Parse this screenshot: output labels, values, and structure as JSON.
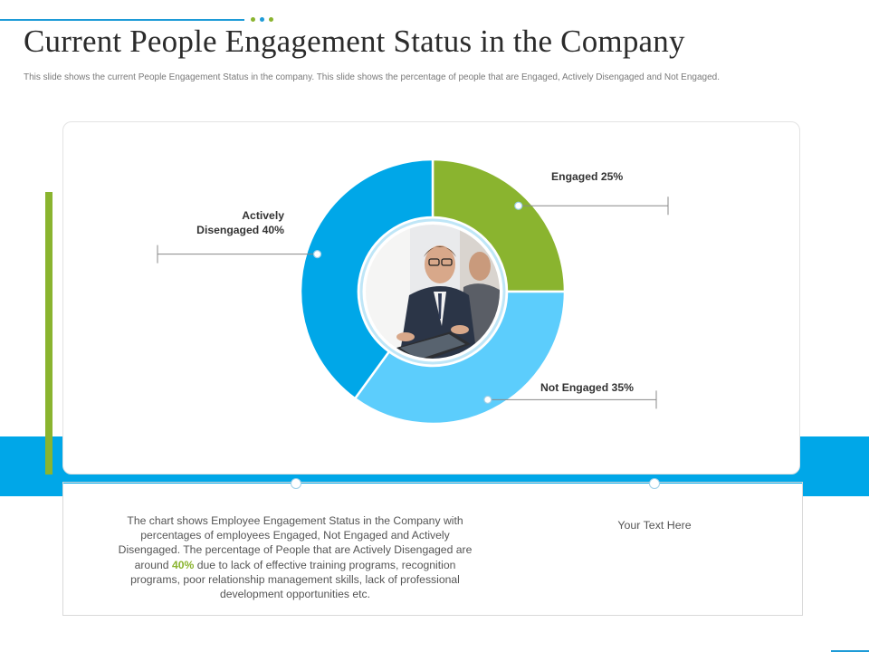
{
  "header": {
    "title": "Current People Engagement Status in the Company",
    "subtitle": "This slide shows the current People Engagement  Status in the company. This slide shows the percentage of people that are Engaged,  Actively Disengaged and Not Engaged."
  },
  "colors": {
    "engaged": "#8ab42f",
    "not_engaged": "#5ccdfc",
    "actively_disengaged": "#00a7e8",
    "accent_blue": "#00a7e8",
    "accent_green": "#8ab42f"
  },
  "chart_data": {
    "type": "pie",
    "title": "",
    "categories": [
      "Engaged",
      "Not Engaged",
      "Actively Disengaged"
    ],
    "values": [
      25,
      35,
      40
    ],
    "labels": [
      "Engaged 25%",
      "Not Engaged 35%",
      "Actively Disengaged 40%"
    ],
    "label_lines": [
      [
        "Engaged 25%"
      ],
      [
        "Not Engaged 35%"
      ],
      [
        "Actively",
        "Disengaged 40%"
      ]
    ],
    "donut": true,
    "center_image": "business-meeting-photo"
  },
  "description": {
    "part1": "The chart shows Employee Engagement Status in the Company with percentages of employees Engaged, Not Engaged and Actively Disengaged. The percentage of People that are Actively Disengaged are around",
    "highlight": "40%",
    "part2": "due to lack of effective training programs, recognition programs, poor relationship management skills, lack of professional development  opportunities etc."
  },
  "placeholder_text": "Your Text Here"
}
